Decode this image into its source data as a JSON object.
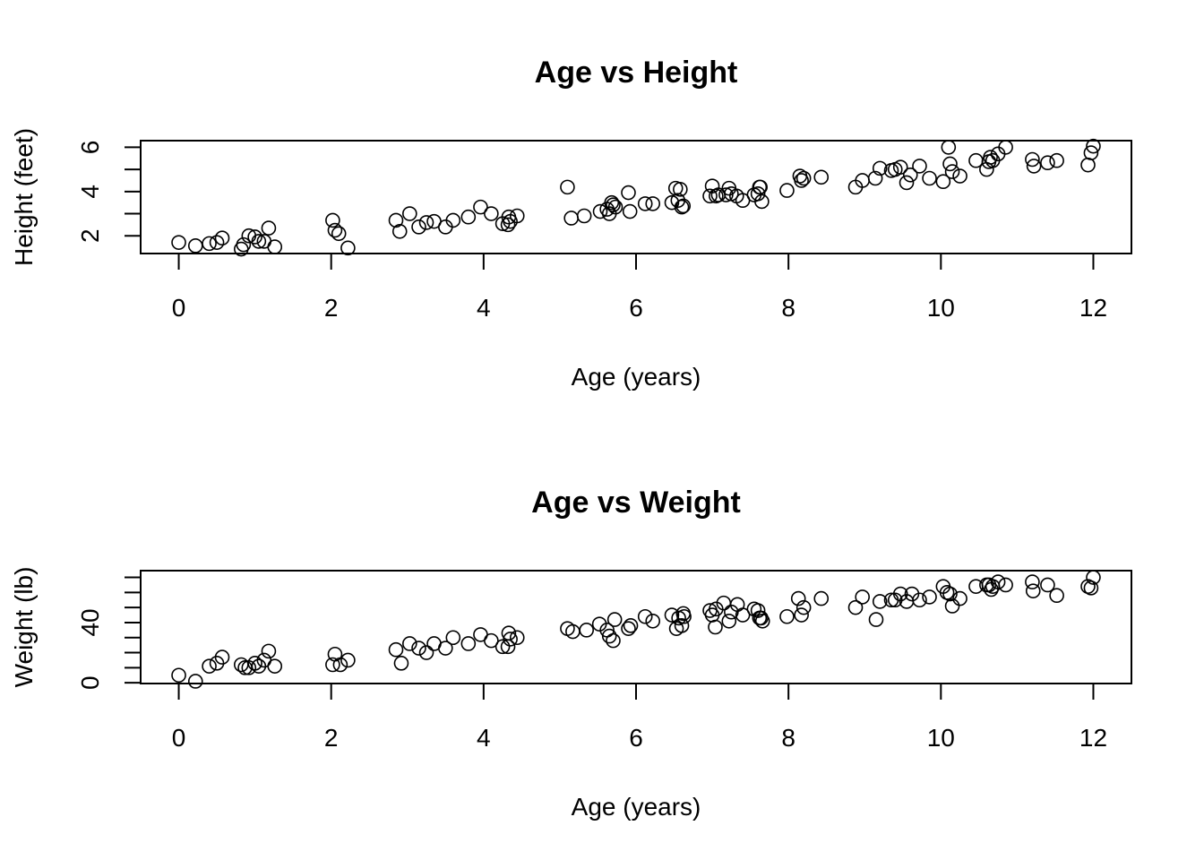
{
  "chart_data": [
    {
      "type": "scatter",
      "title": "Age vs Height",
      "xlabel": "Age (years)",
      "ylabel": "Height (feet)",
      "xlim": [
        -0.5,
        12.5
      ],
      "ylim": [
        1.2,
        6.3
      ],
      "xticks": [
        0,
        2,
        4,
        6,
        8,
        10,
        12
      ],
      "yticks": [
        2,
        3,
        4,
        5,
        6
      ],
      "ytick_labels": [
        "2",
        "",
        "4",
        "",
        "6"
      ],
      "grid": false,
      "points": [
        [
          0.0,
          1.7
        ],
        [
          0.22,
          1.55
        ],
        [
          0.4,
          1.65
        ],
        [
          0.5,
          1.7
        ],
        [
          0.57,
          1.9
        ],
        [
          0.82,
          1.4
        ],
        [
          0.85,
          1.6
        ],
        [
          0.92,
          2.0
        ],
        [
          1.0,
          1.95
        ],
        [
          1.05,
          1.75
        ],
        [
          1.12,
          1.75
        ],
        [
          1.18,
          2.35
        ],
        [
          1.26,
          1.5
        ],
        [
          2.02,
          2.7
        ],
        [
          2.05,
          2.25
        ],
        [
          2.1,
          2.1
        ],
        [
          2.22,
          1.45
        ],
        [
          2.85,
          2.7
        ],
        [
          2.9,
          2.2
        ],
        [
          3.03,
          3.0
        ],
        [
          3.15,
          2.4
        ],
        [
          3.25,
          2.6
        ],
        [
          3.35,
          2.65
        ],
        [
          3.5,
          2.4
        ],
        [
          3.6,
          2.7
        ],
        [
          3.8,
          2.85
        ],
        [
          3.96,
          3.3
        ],
        [
          4.1,
          3.0
        ],
        [
          4.25,
          2.55
        ],
        [
          4.32,
          2.5
        ],
        [
          4.33,
          2.85
        ],
        [
          4.35,
          2.65
        ],
        [
          4.44,
          2.9
        ],
        [
          5.1,
          4.2
        ],
        [
          5.15,
          2.8
        ],
        [
          5.32,
          2.9
        ],
        [
          5.53,
          3.1
        ],
        [
          5.62,
          3.2
        ],
        [
          5.65,
          3.0
        ],
        [
          5.68,
          3.5
        ],
        [
          5.7,
          3.4
        ],
        [
          5.73,
          3.3
        ],
        [
          5.9,
          3.95
        ],
        [
          5.92,
          3.1
        ],
        [
          6.12,
          3.45
        ],
        [
          6.22,
          3.45
        ],
        [
          6.47,
          3.5
        ],
        [
          6.52,
          4.15
        ],
        [
          6.55,
          3.6
        ],
        [
          6.58,
          4.1
        ],
        [
          6.6,
          3.3
        ],
        [
          6.62,
          3.35
        ],
        [
          6.97,
          3.8
        ],
        [
          7.0,
          4.25
        ],
        [
          7.05,
          3.8
        ],
        [
          7.08,
          3.85
        ],
        [
          7.18,
          3.85
        ],
        [
          7.22,
          4.15
        ],
        [
          7.25,
          3.9
        ],
        [
          7.32,
          3.8
        ],
        [
          7.4,
          3.6
        ],
        [
          7.55,
          3.85
        ],
        [
          7.6,
          3.9
        ],
        [
          7.62,
          4.2
        ],
        [
          7.63,
          4.2
        ],
        [
          7.65,
          3.55
        ],
        [
          7.98,
          4.05
        ],
        [
          8.15,
          4.7
        ],
        [
          8.17,
          4.5
        ],
        [
          8.2,
          4.6
        ],
        [
          8.43,
          4.65
        ],
        [
          8.88,
          4.2
        ],
        [
          8.97,
          4.5
        ],
        [
          9.14,
          4.6
        ],
        [
          9.2,
          5.05
        ],
        [
          9.35,
          4.95
        ],
        [
          9.4,
          5.0
        ],
        [
          9.47,
          5.1
        ],
        [
          9.55,
          4.4
        ],
        [
          9.6,
          4.75
        ],
        [
          9.72,
          5.15
        ],
        [
          9.85,
          4.6
        ],
        [
          10.03,
          4.45
        ],
        [
          10.1,
          6.0
        ],
        [
          10.12,
          5.25
        ],
        [
          10.15,
          4.9
        ],
        [
          10.25,
          4.7
        ],
        [
          10.46,
          5.4
        ],
        [
          10.6,
          5.0
        ],
        [
          10.63,
          5.35
        ],
        [
          10.65,
          5.55
        ],
        [
          10.68,
          5.4
        ],
        [
          10.75,
          5.7
        ],
        [
          10.85,
          6.0
        ],
        [
          11.2,
          5.45
        ],
        [
          11.22,
          5.15
        ],
        [
          11.4,
          5.3
        ],
        [
          11.52,
          5.4
        ],
        [
          11.93,
          5.2
        ],
        [
          11.97,
          5.75
        ],
        [
          12.0,
          6.05
        ]
      ]
    },
    {
      "type": "scatter",
      "title": "Age vs Weight",
      "xlabel": "Age (years)",
      "ylabel": "Weight (lb)",
      "xlim": [
        -0.5,
        12.5
      ],
      "ylim": [
        -0.5,
        74.5
      ],
      "xticks": [
        0,
        2,
        4,
        6,
        8,
        10,
        12
      ],
      "yticks": [
        0,
        10,
        20,
        30,
        40,
        50,
        60,
        70
      ],
      "ytick_labels": [
        "0",
        "",
        "",
        "",
        "40",
        "",
        "",
        ""
      ],
      "grid": false,
      "points": [
        [
          0.0,
          5
        ],
        [
          0.22,
          1
        ],
        [
          0.4,
          11
        ],
        [
          0.5,
          13
        ],
        [
          0.57,
          17
        ],
        [
          0.82,
          12
        ],
        [
          0.87,
          10
        ],
        [
          0.92,
          10
        ],
        [
          1.0,
          13
        ],
        [
          1.05,
          11
        ],
        [
          1.12,
          15
        ],
        [
          1.18,
          21
        ],
        [
          1.26,
          11
        ],
        [
          2.02,
          12
        ],
        [
          2.05,
          19
        ],
        [
          2.12,
          12
        ],
        [
          2.22,
          15
        ],
        [
          2.85,
          22
        ],
        [
          2.92,
          13
        ],
        [
          3.03,
          26
        ],
        [
          3.15,
          23
        ],
        [
          3.25,
          20
        ],
        [
          3.35,
          26
        ],
        [
          3.5,
          23
        ],
        [
          3.6,
          30
        ],
        [
          3.8,
          26
        ],
        [
          3.96,
          32
        ],
        [
          4.1,
          28
        ],
        [
          4.25,
          24
        ],
        [
          4.32,
          24
        ],
        [
          4.33,
          33
        ],
        [
          4.35,
          29
        ],
        [
          4.44,
          30
        ],
        [
          5.1,
          36
        ],
        [
          5.17,
          34
        ],
        [
          5.35,
          35
        ],
        [
          5.52,
          39
        ],
        [
          5.62,
          35
        ],
        [
          5.65,
          31
        ],
        [
          5.7,
          28
        ],
        [
          5.72,
          42
        ],
        [
          5.9,
          36
        ],
        [
          5.93,
          38
        ],
        [
          6.12,
          44
        ],
        [
          6.22,
          41
        ],
        [
          6.47,
          45
        ],
        [
          6.53,
          36
        ],
        [
          6.56,
          43
        ],
        [
          6.6,
          38
        ],
        [
          6.62,
          46
        ],
        [
          6.63,
          44
        ],
        [
          6.97,
          48
        ],
        [
          7.0,
          45
        ],
        [
          7.04,
          37
        ],
        [
          7.05,
          49
        ],
        [
          7.15,
          53
        ],
        [
          7.22,
          41
        ],
        [
          7.25,
          47
        ],
        [
          7.33,
          52
        ],
        [
          7.4,
          45
        ],
        [
          7.55,
          49
        ],
        [
          7.6,
          48
        ],
        [
          7.62,
          43
        ],
        [
          7.64,
          43
        ],
        [
          7.66,
          41
        ],
        [
          7.98,
          44
        ],
        [
          8.13,
          56
        ],
        [
          8.17,
          45
        ],
        [
          8.2,
          50
        ],
        [
          8.43,
          56
        ],
        [
          8.88,
          50
        ],
        [
          8.97,
          57
        ],
        [
          9.15,
          42
        ],
        [
          9.2,
          54
        ],
        [
          9.35,
          55
        ],
        [
          9.4,
          55
        ],
        [
          9.47,
          59
        ],
        [
          9.55,
          54
        ],
        [
          9.62,
          59
        ],
        [
          9.72,
          55
        ],
        [
          9.85,
          57
        ],
        [
          10.03,
          64
        ],
        [
          10.08,
          60
        ],
        [
          10.12,
          59
        ],
        [
          10.15,
          51
        ],
        [
          10.25,
          56
        ],
        [
          10.46,
          64
        ],
        [
          10.6,
          65
        ],
        [
          10.63,
          65
        ],
        [
          10.66,
          62
        ],
        [
          10.68,
          64
        ],
        [
          10.75,
          67
        ],
        [
          10.85,
          65
        ],
        [
          11.2,
          67
        ],
        [
          11.21,
          61
        ],
        [
          11.4,
          65
        ],
        [
          11.52,
          58
        ],
        [
          11.93,
          64
        ],
        [
          11.97,
          63
        ],
        [
          12.0,
          70
        ]
      ]
    }
  ]
}
